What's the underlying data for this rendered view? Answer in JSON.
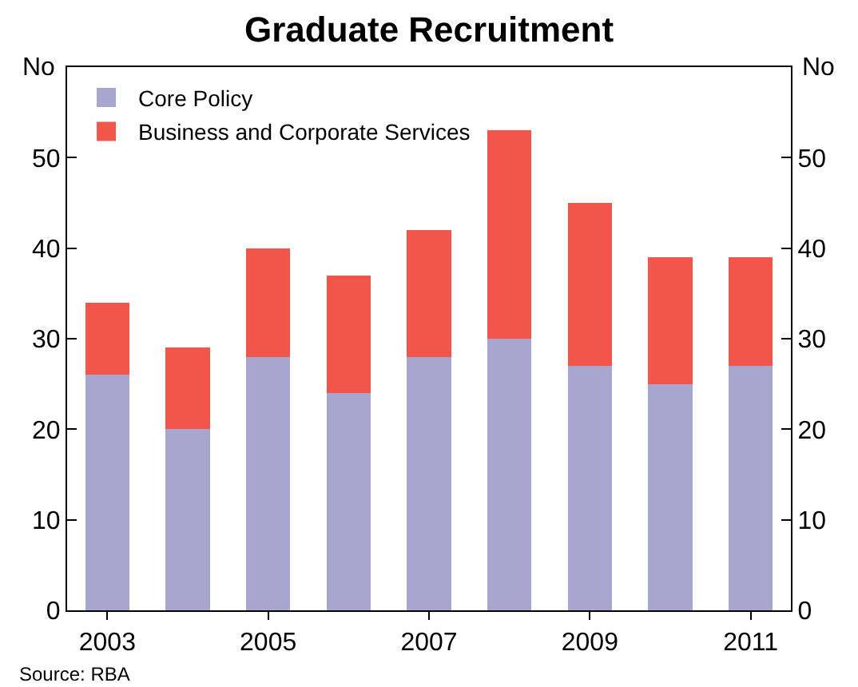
{
  "chart_data": {
    "type": "bar",
    "title": "Graduate Recruitment",
    "ylabel": "No",
    "y2label": "No",
    "categories": [
      "2003",
      null,
      "2005",
      null,
      "2007",
      null,
      "2009",
      null,
      "2011"
    ],
    "series": [
      {
        "name": "Core Policy",
        "color": "#a6a6cf",
        "values": [
          26,
          20,
          28,
          24,
          28,
          30,
          27,
          25,
          27
        ]
      },
      {
        "name": "Business and Corporate Services",
        "color": "#f2564b",
        "values": [
          8,
          9,
          12,
          13,
          14,
          23,
          18,
          14,
          12
        ]
      }
    ],
    "stacked": true,
    "ylim": [
      0,
      60
    ],
    "yticks": [
      0,
      10,
      20,
      30,
      40,
      50
    ],
    "y2lim": [
      0,
      60
    ],
    "y2ticks": [
      0,
      10,
      20,
      30,
      40,
      50
    ],
    "grid": false,
    "legend": "top left",
    "annotations": [
      "Source: RBA"
    ]
  }
}
